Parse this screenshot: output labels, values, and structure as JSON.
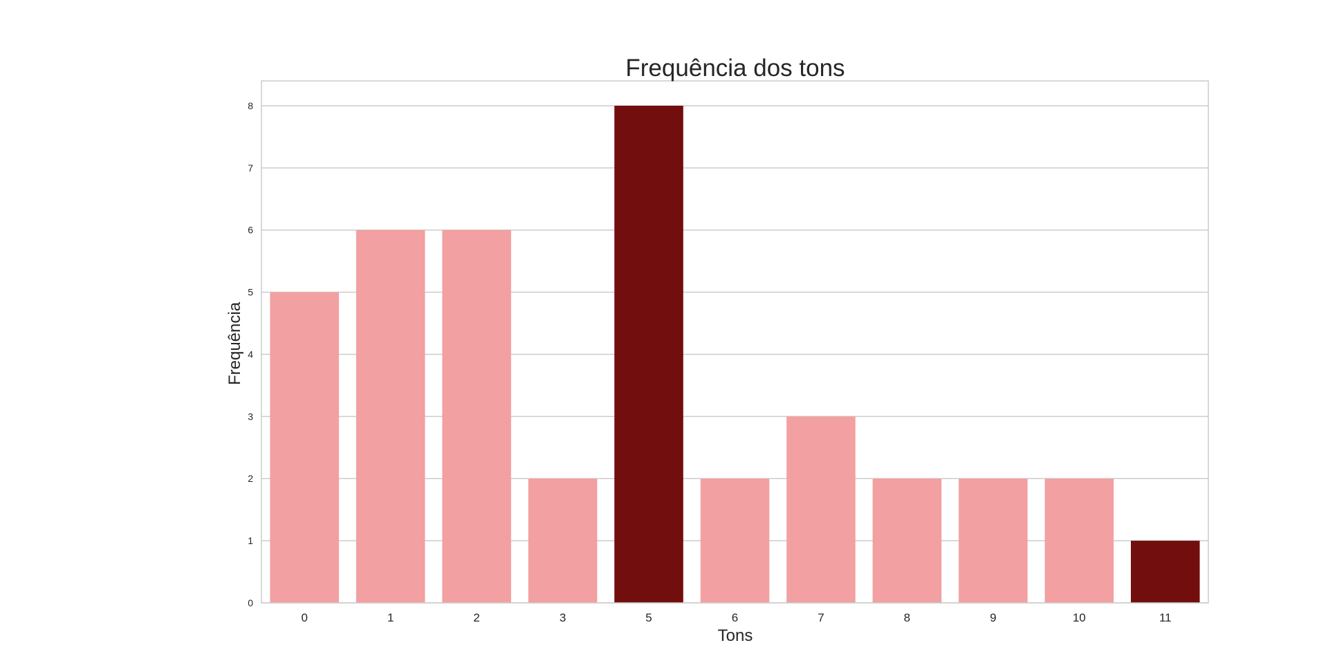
{
  "chart_data": {
    "type": "bar",
    "title": "Frequência dos tons",
    "xlabel": "Tons",
    "ylabel": "Frequência",
    "categories": [
      "0",
      "1",
      "2",
      "3",
      "5",
      "6",
      "7",
      "8",
      "9",
      "10",
      "11"
    ],
    "values": [
      5,
      6,
      6,
      2,
      8,
      2,
      3,
      2,
      2,
      2,
      1
    ],
    "highlighted": [
      false,
      false,
      false,
      false,
      true,
      false,
      false,
      false,
      false,
      false,
      true
    ],
    "yticks": [
      0,
      1,
      2,
      3,
      4,
      5,
      6,
      7,
      8
    ],
    "ylim": [
      0,
      8.4
    ],
    "grid": "horizontal",
    "legend": "none",
    "colors": {
      "bar": "#f2a0a1",
      "highlight": "#720e0e",
      "grid": "#cccccc",
      "frame": "#cccccc",
      "text": "#262626"
    }
  }
}
